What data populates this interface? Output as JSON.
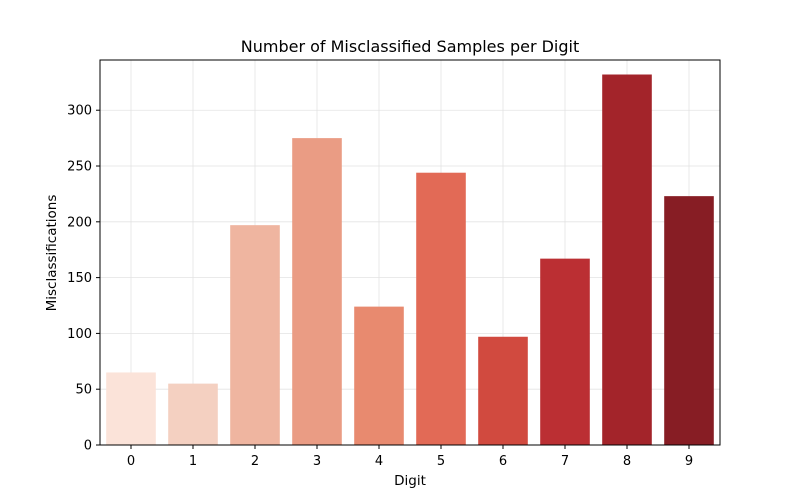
{
  "chart_data": {
    "type": "bar",
    "title": "Number of Misclassified Samples per Digit",
    "xlabel": "Digit",
    "ylabel": "Misclassifications",
    "categories": [
      "0",
      "1",
      "2",
      "3",
      "4",
      "5",
      "6",
      "7",
      "8",
      "9"
    ],
    "values": [
      65,
      55,
      197,
      275,
      124,
      244,
      97,
      167,
      332,
      223
    ],
    "colors": [
      "#fbe3d9",
      "#f4d0c1",
      "#efb5a0",
      "#ea9c84",
      "#e88a6f",
      "#e26a56",
      "#d14a3f",
      "#bb2f33",
      "#a3242a",
      "#871d24"
    ],
    "ylim": [
      0,
      345
    ],
    "yticks": [
      0,
      50,
      100,
      150,
      200,
      250,
      300
    ],
    "grid": true,
    "legend": "none"
  }
}
